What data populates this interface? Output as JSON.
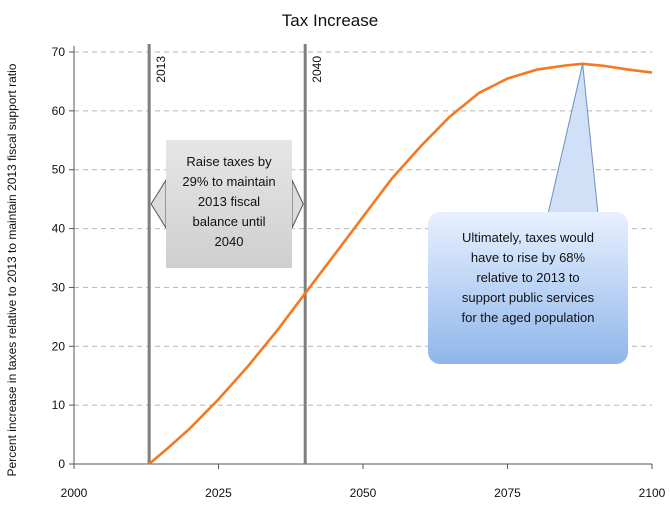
{
  "chart_data": {
    "type": "line",
    "title": "Tax Increase",
    "xlabel": "",
    "ylabel": "Percent increase in taxes relative to 2013  to maintain 2013 fiscal support ratio",
    "xlim": [
      2000,
      2100
    ],
    "ylim": [
      0,
      70
    ],
    "x_ticks": [
      "2000",
      "2025",
      "2050",
      "2075",
      "2100"
    ],
    "y_ticks": [
      "0",
      "10",
      "20",
      "30",
      "40",
      "50",
      "60",
      "70"
    ],
    "grid": "horizontal dashed",
    "series": [
      {
        "color": "#f47920",
        "x": [
          2013,
          2016,
          2020,
          2025,
          2030,
          2035,
          2040,
          2045,
          2050,
          2055,
          2060,
          2065,
          2070,
          2075,
          2080,
          2085,
          2088,
          2092,
          2096,
          2100
        ],
        "y": [
          0,
          2.5,
          6,
          11,
          16.5,
          22.5,
          29,
          35.5,
          42,
          48.5,
          54,
          59,
          63,
          65.5,
          67,
          67.7,
          68,
          67.6,
          67,
          66.5
        ]
      }
    ],
    "vlines": [
      {
        "x": 2013,
        "label": "2013"
      },
      {
        "x": 2040,
        "label": "2040"
      }
    ],
    "annotations": [
      {
        "lines": [
          "Raise taxes by",
          "29% to maintain",
          "2013 fiscal",
          "balance until",
          "2040"
        ],
        "color": "#d9d9d9"
      },
      {
        "lines": [
          "Ultimately, taxes would",
          "have to rise by 68%",
          "relative to 2013 to",
          "support public services",
          "for the aged population"
        ],
        "color": "#a9c8f0",
        "points_to": {
          "x": 2088,
          "y": 68
        }
      }
    ]
  }
}
